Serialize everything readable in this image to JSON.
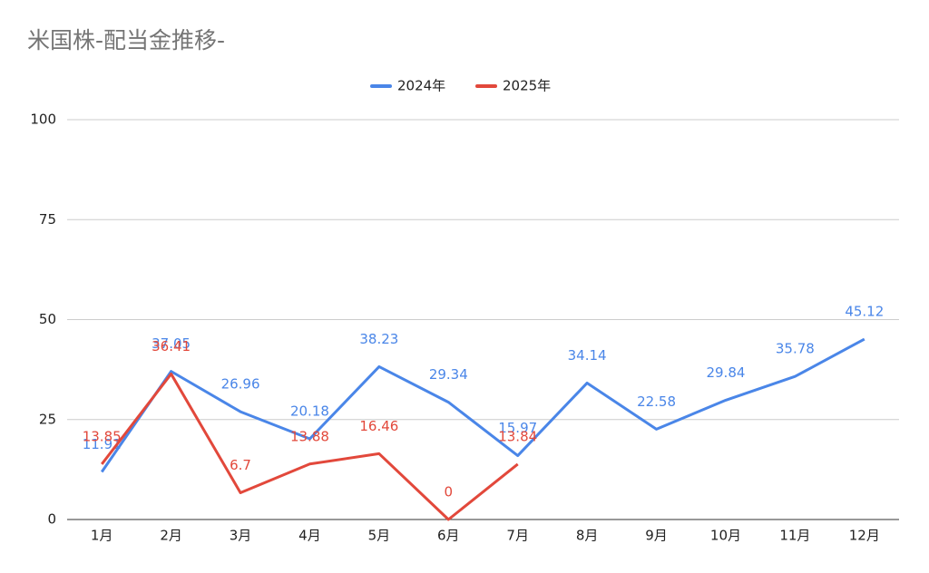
{
  "chart_data": {
    "type": "line",
    "title": "米国株-配当金推移-",
    "categories": [
      "1月",
      "2月",
      "3月",
      "4月",
      "5月",
      "6月",
      "7月",
      "8月",
      "9月",
      "10月",
      "11月",
      "12月"
    ],
    "series": [
      {
        "name": "2024年",
        "color": "#4a86e8",
        "values": [
          11.91,
          37.05,
          26.96,
          20.18,
          38.23,
          29.34,
          15.97,
          34.14,
          22.58,
          29.84,
          35.78,
          45.12
        ]
      },
      {
        "name": "2025年",
        "color": "#e2483b",
        "values": [
          13.85,
          36.41,
          6.7,
          13.88,
          16.46,
          0,
          13.84,
          null,
          null,
          null,
          null,
          null
        ]
      }
    ],
    "ylim": [
      0,
      100
    ],
    "yticks": [
      0,
      25,
      50,
      75,
      100
    ],
    "grid": true,
    "legend": "top"
  }
}
